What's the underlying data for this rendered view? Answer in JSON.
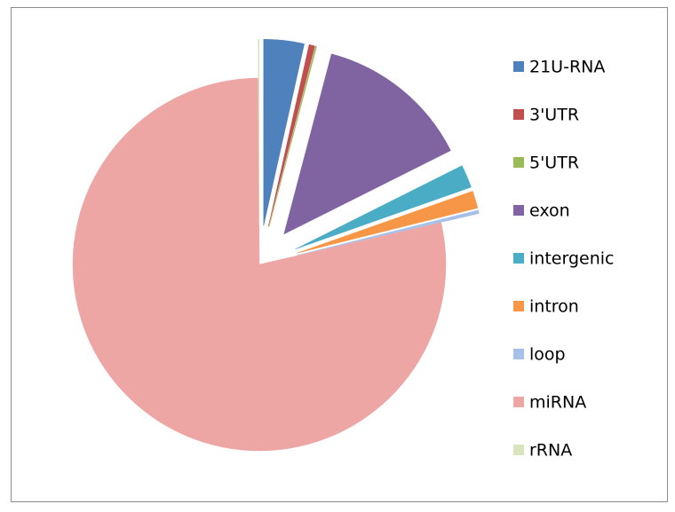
{
  "chart_data": {
    "type": "pie",
    "categories": [
      "21U-RNA",
      "3'UTR",
      "5'UTR",
      "exon",
      "intergenic",
      "intron",
      "loop",
      "miRNA",
      "rRNA"
    ],
    "values": [
      3.5,
      0.5,
      0.1,
      13.5,
      2,
      1.5,
      0.3,
      78.5,
      0.1
    ],
    "colors": [
      "#4f81bd",
      "#c0504d",
      "#9bbb59",
      "#8064a2",
      "#4bacc6",
      "#f79646",
      "#a7c0e8",
      "#eea6a5",
      "#d7e4bd"
    ],
    "exploded": [
      true,
      true,
      true,
      true,
      true,
      true,
      true,
      false,
      true
    ],
    "legend": "right"
  }
}
